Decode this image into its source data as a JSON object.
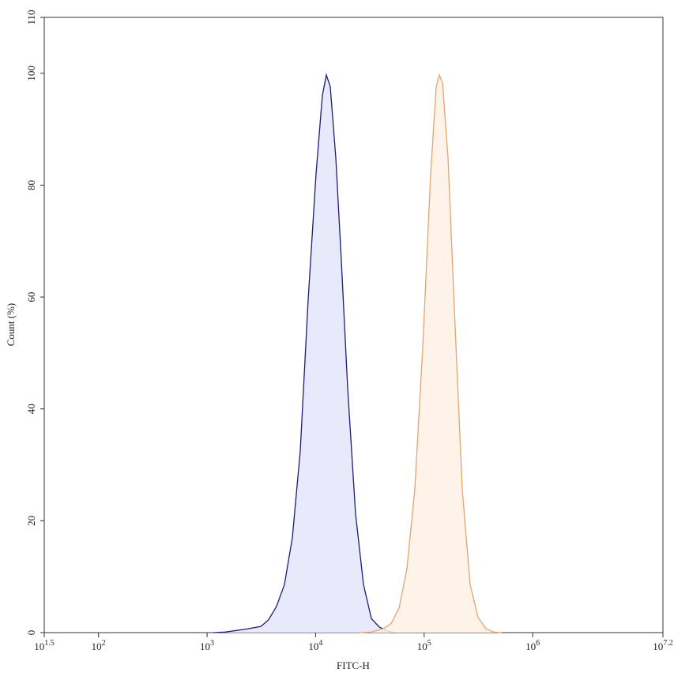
{
  "chart_data": {
    "type": "area",
    "x_label": "FITC-H",
    "y_label": "Count (%)",
    "log_x": true,
    "xlim": [
      31.6227766,
      15848931.92
    ],
    "xticks": [
      {
        "value": 31.6227766,
        "label": "10^1.5"
      },
      {
        "value": 100,
        "label": "10^2"
      },
      {
        "value": 1000,
        "label": "10^3"
      },
      {
        "value": 10000,
        "label": "10^4"
      },
      {
        "value": 100000,
        "label": "10^5"
      },
      {
        "value": 1000000,
        "label": "10^6"
      },
      {
        "value": 15848931.92,
        "label": "10^7.2"
      }
    ],
    "ylim": [
      0,
      110
    ],
    "yticks": [
      0,
      20,
      40,
      60,
      80,
      100,
      110
    ],
    "series": [
      {
        "color": "#1c1c7a",
        "fill": "#e4e6fb",
        "x": [
          1143,
          1469,
          2234,
          3126,
          3690,
          4365,
          5164,
          6109,
          7228,
          8538,
          10093,
          11535,
          12560,
          13650,
          15350,
          17260,
          19720,
          23330,
          27610,
          32660,
          38640,
          45600,
          53950
        ],
        "values": [
          0,
          0.1,
          0.6,
          1.1,
          2.3,
          4.7,
          8.6,
          17,
          32.6,
          59.5,
          82,
          96,
          99.7,
          97.6,
          84.9,
          66.5,
          43.9,
          21.3,
          8.6,
          2.5,
          1,
          0.3,
          0
        ]
      },
      {
        "color": "#e2a571",
        "fill": "#fdf1e5",
        "x": [
          25400,
          32660,
          41980,
          49660,
          58750,
          69340,
          82030,
          97050,
          114800,
          129100,
          138000,
          147600,
          166000,
          189700,
          224400,
          265400,
          314100,
          370700,
          438500,
          518800
        ],
        "values": [
          0,
          0.1,
          0.7,
          1.6,
          4.4,
          11.4,
          25.6,
          51,
          82,
          97.6,
          99.7,
          98.3,
          84.9,
          58,
          25.6,
          8.6,
          2.7,
          0.7,
          0.1,
          0
        ]
      }
    ]
  }
}
